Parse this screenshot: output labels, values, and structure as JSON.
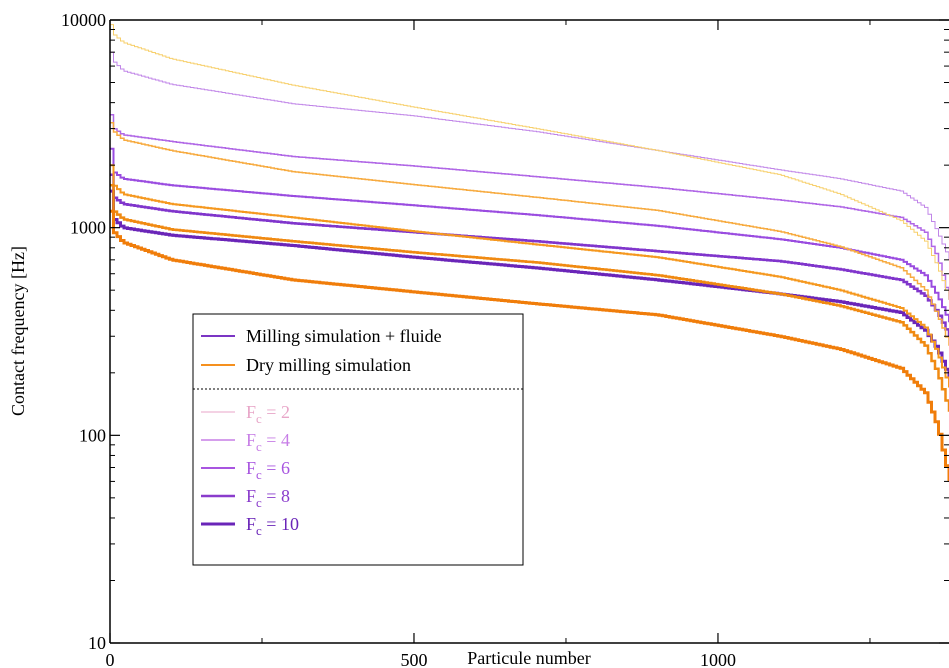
{
  "chart_data": {
    "type": "line",
    "title": "",
    "xlabel": "Particule number",
    "ylabel": "Contact frequency [Hz]",
    "xlim": [
      0,
      1380
    ],
    "ylim": [
      10,
      10000
    ],
    "yscale": "log",
    "grid": false,
    "legend_position": "bottom-left",
    "x_ticks": [
      {
        "value": 0,
        "label": "0"
      },
      {
        "value": 500,
        "label": "500"
      },
      {
        "value": 1000,
        "label": "1000"
      }
    ],
    "y_ticks": [
      {
        "value": 10,
        "label": "10"
      },
      {
        "value": 100,
        "label": "100"
      },
      {
        "value": 1000,
        "label": "1000"
      },
      {
        "value": 10000,
        "label": "10000"
      }
    ],
    "legend": {
      "types": [
        {
          "label": "Milling simulation + fluide",
          "color": "#7b35c4"
        },
        {
          "label": "Dry milling simulation",
          "color": "#f5901e"
        }
      ],
      "fc_entries": [
        {
          "main": "F",
          "sub": "c",
          "rest": " = 2",
          "color": "#e8a6c8",
          "width": 1
        },
        {
          "main": "F",
          "sub": "c",
          "rest": " = 4",
          "color": "#c77ee6",
          "width": 1.5
        },
        {
          "main": "F",
          "sub": "c",
          "rest": " = 6",
          "color": "#a855e0",
          "width": 2
        },
        {
          "main": "F",
          "sub": "c",
          "rest": " = 8",
          "color": "#8a3ccc",
          "width": 2.5
        },
        {
          "main": "F",
          "sub": "c",
          "rest": " = 10",
          "color": "#6a25b8",
          "width": 3
        }
      ]
    },
    "series": [
      {
        "group": "fluide",
        "fc": 2,
        "color": "#c085e8",
        "width": 1,
        "x": [
          0,
          5,
          20,
          100,
          300,
          500,
          700,
          900,
          1100,
          1200,
          1300,
          1340,
          1360,
          1380
        ],
        "y": [
          7000,
          6300,
          5700,
          4900,
          3950,
          3450,
          2900,
          2350,
          1900,
          1720,
          1500,
          1250,
          950,
          700
        ]
      },
      {
        "group": "fluide",
        "fc": 4,
        "color": "#b067e6",
        "width": 1.5,
        "x": [
          0,
          5,
          20,
          100,
          300,
          500,
          700,
          900,
          1100,
          1200,
          1300,
          1340,
          1360,
          1380
        ],
        "y": [
          3500,
          3000,
          2800,
          2600,
          2200,
          1980,
          1760,
          1560,
          1360,
          1260,
          1120,
          950,
          720,
          450
        ]
      },
      {
        "group": "fluide",
        "fc": 6,
        "color": "#9a4ce0",
        "width": 2,
        "x": [
          0,
          5,
          20,
          100,
          300,
          500,
          700,
          900,
          1100,
          1200,
          1300,
          1340,
          1360,
          1380
        ],
        "y": [
          2400,
          1850,
          1720,
          1600,
          1420,
          1280,
          1150,
          1020,
          880,
          800,
          700,
          590,
          470,
          350
        ]
      },
      {
        "group": "fluide",
        "fc": 8,
        "color": "#8035cc",
        "width": 2.5,
        "x": [
          0,
          5,
          20,
          100,
          300,
          500,
          700,
          900,
          1100,
          1200,
          1300,
          1340,
          1360,
          1380
        ],
        "y": [
          1800,
          1400,
          1300,
          1200,
          1050,
          950,
          860,
          770,
          690,
          630,
          560,
          470,
          390,
          300
        ]
      },
      {
        "group": "fluide",
        "fc": 10,
        "color": "#6a25b8",
        "width": 3,
        "x": [
          0,
          5,
          20,
          100,
          300,
          500,
          700,
          900,
          1100,
          1200,
          1300,
          1340,
          1360,
          1380
        ],
        "y": [
          1500,
          1100,
          1000,
          920,
          820,
          720,
          640,
          560,
          480,
          440,
          390,
          320,
          260,
          190
        ]
      },
      {
        "group": "dry",
        "fc": 2,
        "color": "#f7cf6a",
        "width": 1,
        "x": [
          0,
          5,
          20,
          100,
          300,
          500,
          700,
          900,
          1100,
          1200,
          1300,
          1340,
          1360,
          1380
        ],
        "y": [
          9500,
          8500,
          7800,
          6500,
          4850,
          3800,
          3000,
          2350,
          1800,
          1450,
          1080,
          860,
          650,
          450
        ]
      },
      {
        "group": "dry",
        "fc": 4,
        "color": "#f7ab40",
        "width": 1.5,
        "x": [
          0,
          5,
          20,
          100,
          300,
          500,
          700,
          900,
          1100,
          1200,
          1300,
          1340,
          1360,
          1380
        ],
        "y": [
          3200,
          2900,
          2650,
          2350,
          1860,
          1610,
          1400,
          1210,
          960,
          810,
          640,
          500,
          380,
          270
        ]
      },
      {
        "group": "dry",
        "fc": 6,
        "color": "#f5981f",
        "width": 2,
        "x": [
          0,
          5,
          20,
          100,
          300,
          500,
          700,
          900,
          1100,
          1200,
          1300,
          1340,
          1360,
          1380
        ],
        "y": [
          2000,
          1600,
          1450,
          1300,
          1120,
          960,
          830,
          720,
          580,
          500,
          410,
          330,
          250,
          170
        ]
      },
      {
        "group": "dry",
        "fc": 8,
        "color": "#f08a12",
        "width": 2.5,
        "x": [
          0,
          5,
          20,
          100,
          300,
          500,
          700,
          900,
          1100,
          1200,
          1300,
          1340,
          1360,
          1380
        ],
        "y": [
          1600,
          1200,
          1100,
          980,
          860,
          760,
          680,
          590,
          480,
          420,
          350,
          270,
          200,
          130
        ]
      },
      {
        "group": "dry",
        "fc": 10,
        "color": "#f07d0a",
        "width": 3,
        "x": [
          0,
          5,
          20,
          100,
          300,
          500,
          700,
          900,
          1100,
          1200,
          1300,
          1340,
          1360,
          1380
        ],
        "y": [
          1200,
          950,
          850,
          700,
          560,
          490,
          430,
          380,
          300,
          260,
          210,
          160,
          110,
          60
        ]
      }
    ]
  }
}
